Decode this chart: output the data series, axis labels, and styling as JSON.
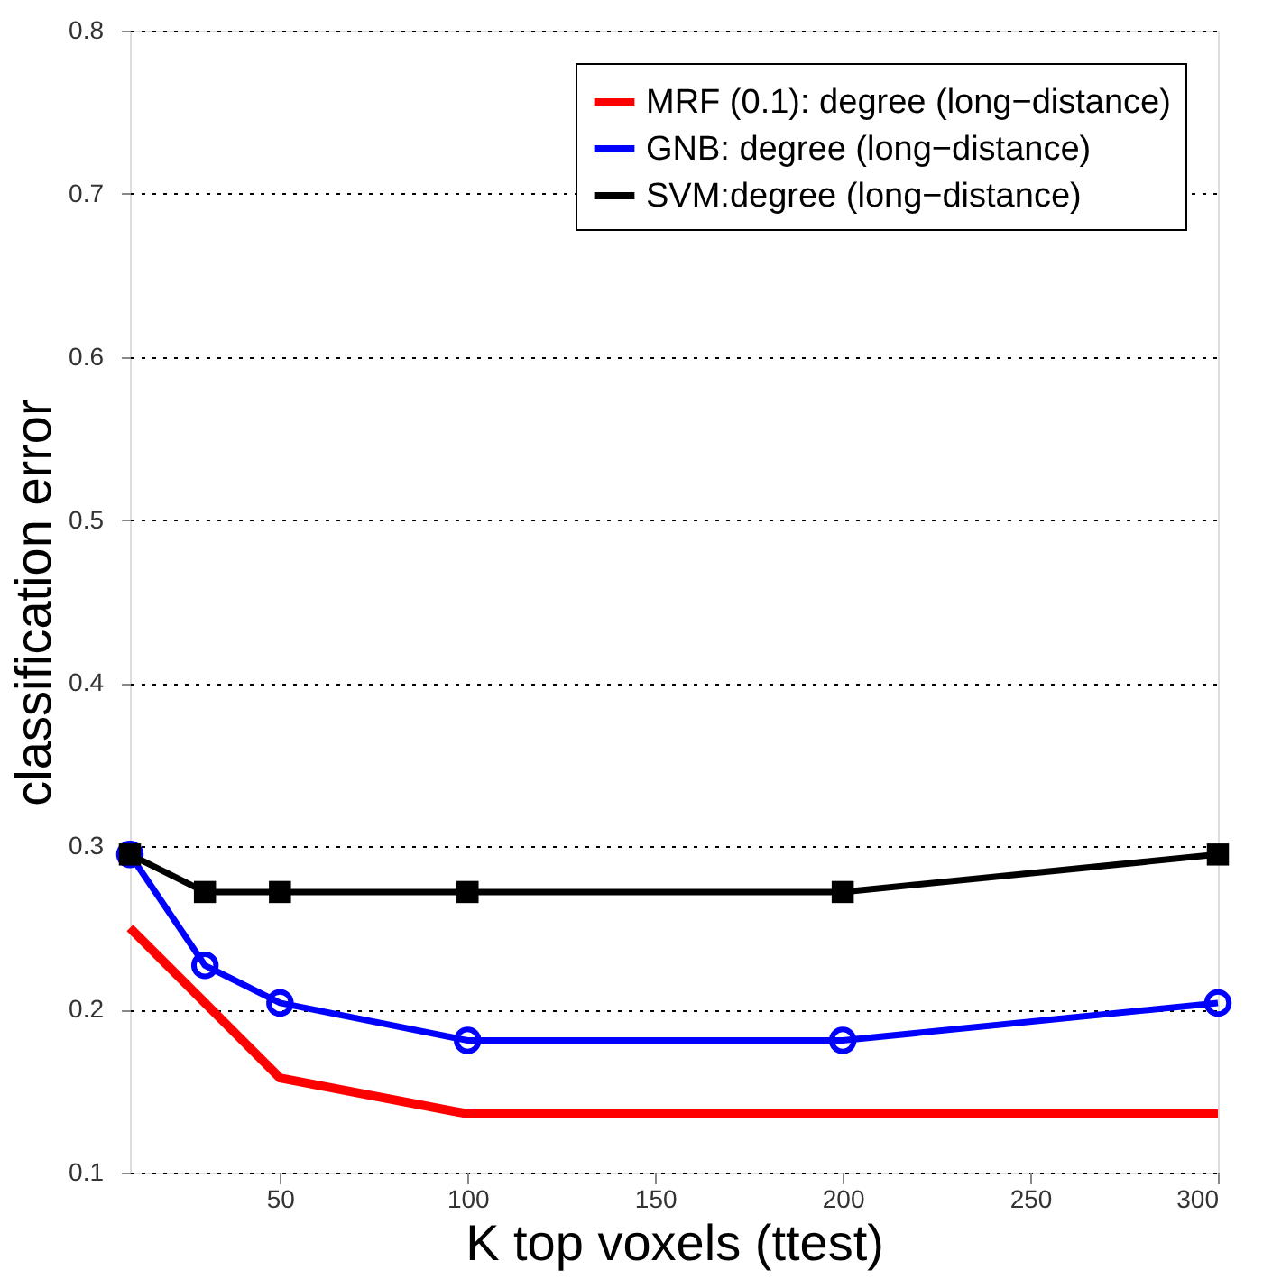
{
  "chart_data": {
    "type": "line",
    "xlabel": "K top voxels (ttest)",
    "ylabel": "classification error",
    "x": [
      10,
      30,
      50,
      100,
      200,
      300
    ],
    "series": [
      {
        "name": "MRF (0.1): degree (long−distance)",
        "color": "#ff0000",
        "marker": "none",
        "values": [
          0.25,
          0.204,
          0.158,
          0.136,
          0.136,
          0.136
        ]
      },
      {
        "name": "GNB: degree (long−distance)",
        "color": "#0000ff",
        "marker": "circle",
        "values": [
          0.295,
          0.227,
          0.204,
          0.181,
          0.181,
          0.204
        ]
      },
      {
        "name": "SVM:degree (long−distance)",
        "color": "#000000",
        "marker": "square",
        "values": [
          0.295,
          0.272,
          0.272,
          0.272,
          0.272,
          0.295
        ]
      }
    ],
    "xlim": [
      10,
      300
    ],
    "xticks": [
      50,
      100,
      150,
      200,
      250,
      300
    ],
    "ylim": [
      0.1,
      0.8
    ],
    "yticks": [
      0.1,
      0.2,
      0.3,
      0.4,
      0.5,
      0.6,
      0.7,
      0.8
    ],
    "grid": "y",
    "legend": "top right",
    "line_style": "solid"
  }
}
